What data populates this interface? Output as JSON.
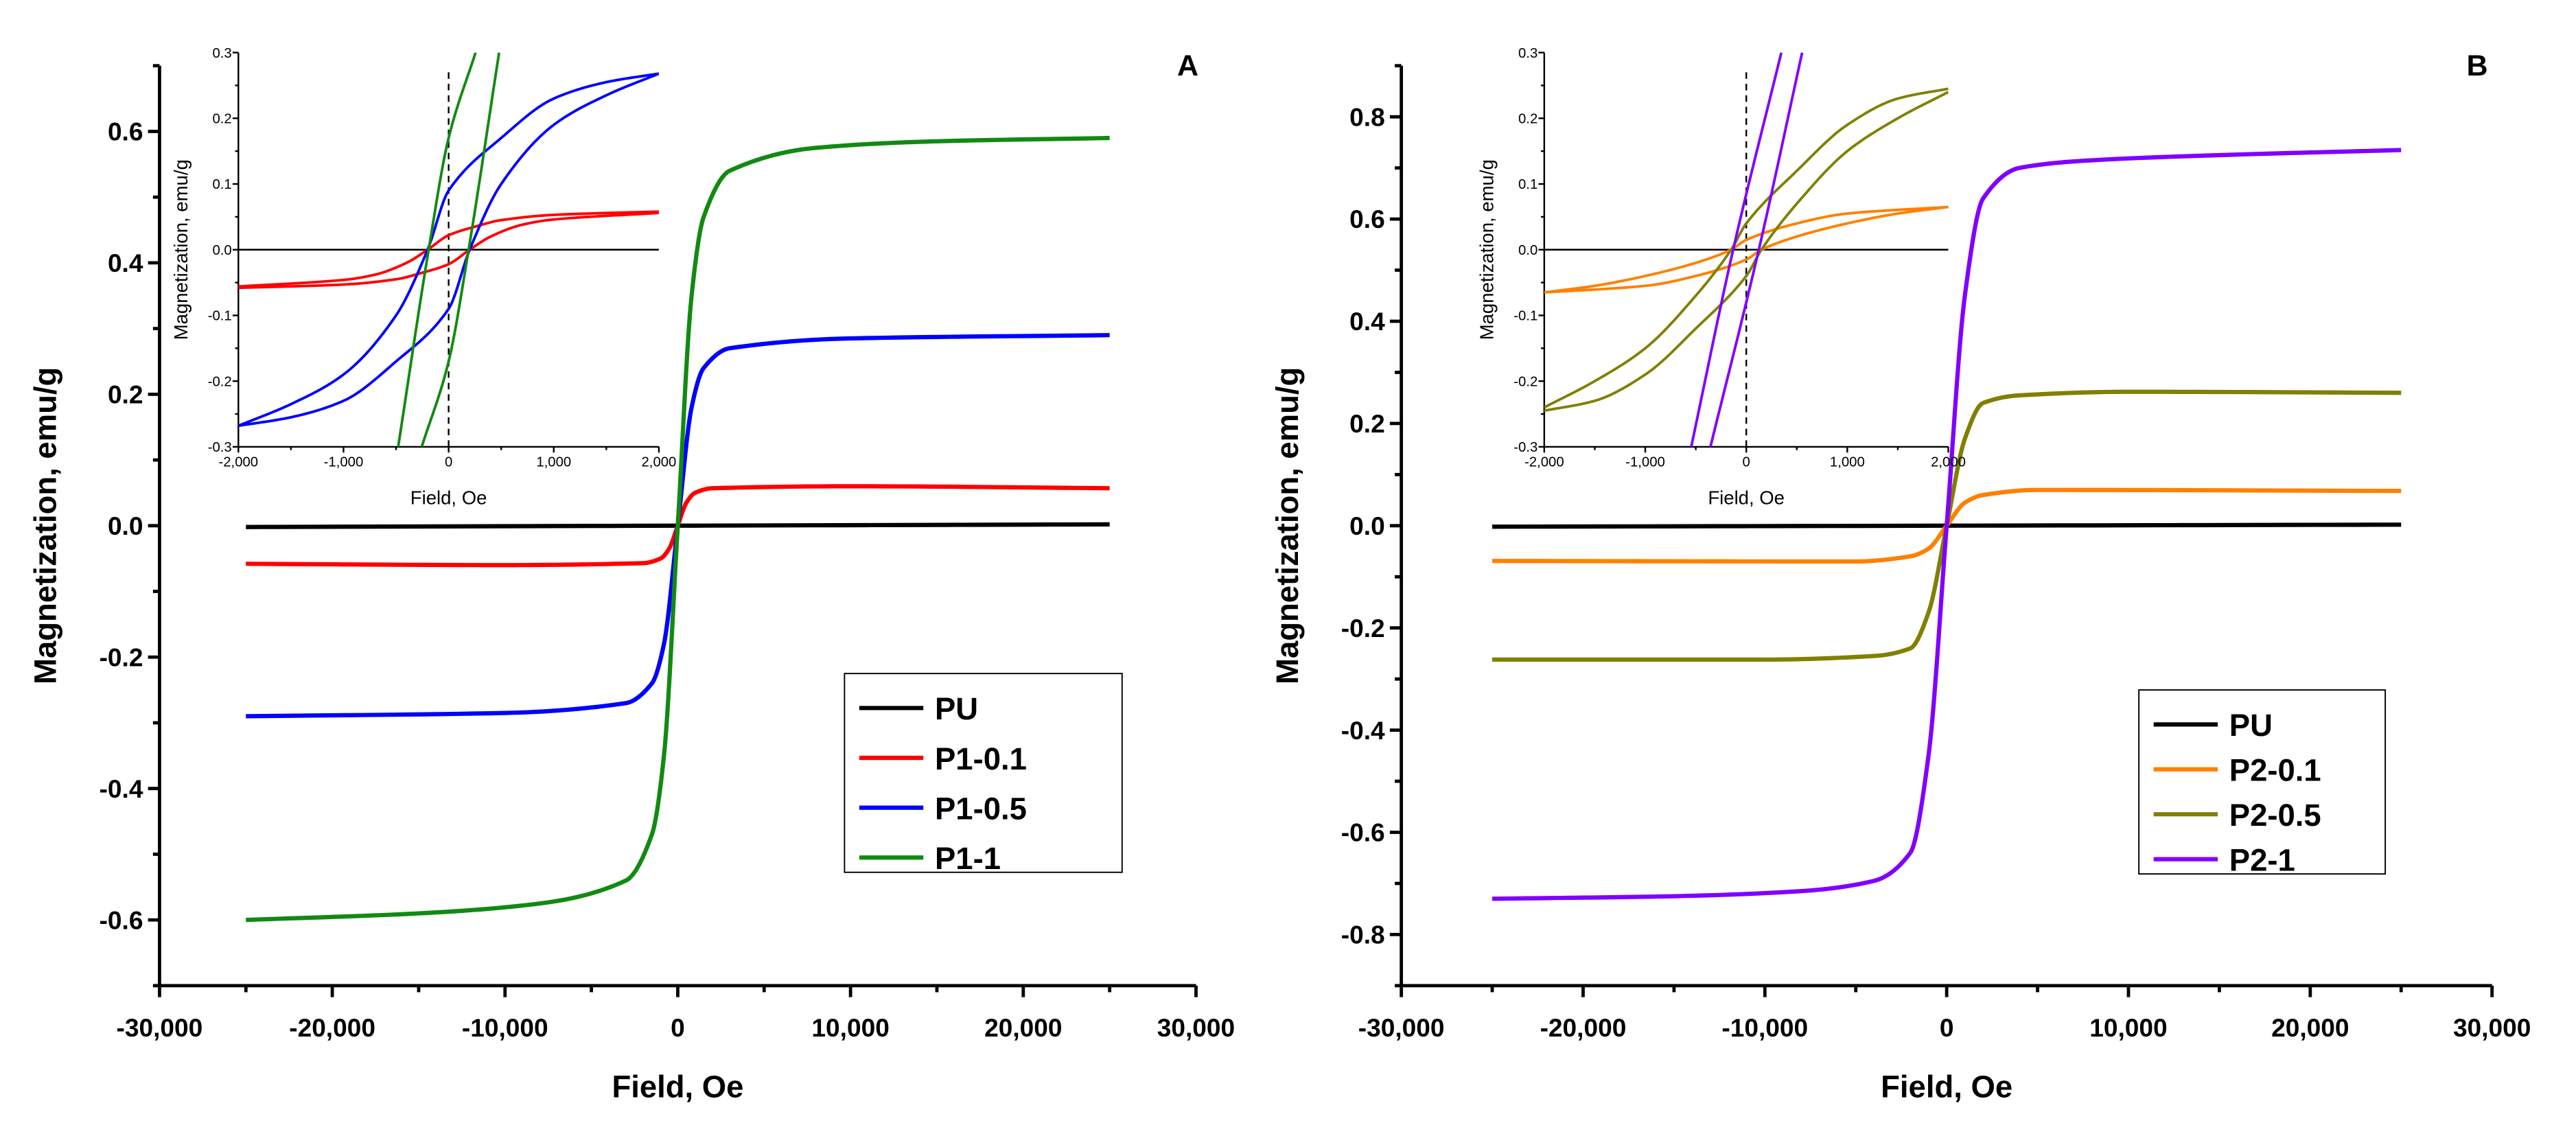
{
  "chart_data": [
    {
      "type": "line",
      "panel_label": "A",
      "title": "",
      "xlabel": "Field, Oe",
      "ylabel": "Magnetization, emu/g",
      "xlim": [
        -30000,
        30000
      ],
      "ylim": [
        -0.7,
        0.7
      ],
      "xticks": [
        -30000,
        -20000,
        -10000,
        0,
        10000,
        20000,
        30000
      ],
      "xtick_labels": [
        "-30,000",
        "-20,000",
        "-10,000",
        "0",
        "10,000",
        "20,000",
        "30,000"
      ],
      "yticks": [
        -0.6,
        -0.4,
        -0.2,
        0.0,
        0.2,
        0.4,
        0.6
      ],
      "ytick_labels": [
        "-0.6",
        "-0.4",
        "-0.2",
        "0.0",
        "0.2",
        "0.4",
        "0.6"
      ],
      "grid": false,
      "legend": {
        "position": "bottom-right",
        "entries": [
          "PU",
          "P1-0.1",
          "P1-0.5",
          "P1-1"
        ]
      },
      "series": [
        {
          "name": "PU",
          "color": "#000000",
          "x": [
            -25000,
            0,
            25000
          ],
          "y": [
            -0.002,
            0,
            0.002
          ]
        },
        {
          "name": "P1-0.1",
          "color": "#ff0000",
          "x": [
            -25000,
            -10000,
            -2000,
            -1000,
            -500,
            0,
            500,
            1000,
            2000,
            10000,
            25000
          ],
          "y": [
            -0.058,
            -0.06,
            -0.057,
            -0.05,
            -0.035,
            0,
            0.035,
            0.05,
            0.057,
            0.06,
            0.057
          ]
        },
        {
          "name": "P1-0.5",
          "color": "#0000ff",
          "x": [
            -25000,
            -10000,
            -3000,
            -1500,
            -800,
            0,
            800,
            1500,
            3000,
            10000,
            25000
          ],
          "y": [
            -0.29,
            -0.285,
            -0.27,
            -0.24,
            -0.18,
            0,
            0.18,
            0.24,
            0.27,
            0.285,
            0.29
          ]
        },
        {
          "name": "P1-1",
          "color": "#118a11",
          "x": [
            -25000,
            -15000,
            -8000,
            -3000,
            -1500,
            -800,
            0,
            800,
            1500,
            3000,
            8000,
            15000,
            25000
          ],
          "y": [
            -0.6,
            -0.59,
            -0.575,
            -0.54,
            -0.47,
            -0.35,
            0,
            0.35,
            0.47,
            0.54,
            0.575,
            0.585,
            0.59
          ]
        }
      ],
      "inset": {
        "xlabel": "Field, Oe",
        "ylabel": "Magnetization, emu/g",
        "xlim": [
          -2000,
          2000
        ],
        "ylim": [
          -0.3,
          0.3
        ],
        "xticks": [
          -2000,
          -1000,
          0,
          1000,
          2000
        ],
        "xtick_labels": [
          "-2,000",
          "-1,000",
          "0",
          "1,000",
          "2,000"
        ],
        "yticks": [
          -0.3,
          -0.2,
          -0.1,
          0.0,
          0.1,
          0.2,
          0.3
        ],
        "ytick_labels": [
          "-0.3",
          "-0.2",
          "-0.1",
          "0.0",
          "0.1",
          "0.2",
          "0.3"
        ],
        "series": [
          {
            "name": "PU",
            "color": "#000000",
            "branches": [
              {
                "x": [
                  -2000,
                  2000
                ],
                "y": [
                  0,
                  0
                ]
              }
            ]
          },
          {
            "name": "P1-0.1",
            "color": "#ff0000",
            "branches": [
              {
                "x": [
                  -2000,
                  -1000,
                  -700,
                  -400,
                  -200,
                  0,
                  250,
                  500,
                  1000,
                  2000
                ],
                "y": [
                  -0.056,
                  -0.046,
                  -0.038,
                  -0.02,
                  0,
                  0.022,
                  0.035,
                  0.045,
                  0.053,
                  0.058
                ]
              },
              {
                "x": [
                  -2000,
                  -1000,
                  -500,
                  -250,
                  0,
                  200,
                  400,
                  700,
                  1000,
                  2000
                ],
                "y": [
                  -0.058,
                  -0.053,
                  -0.045,
                  -0.035,
                  -0.022,
                  0,
                  0.02,
                  0.038,
                  0.046,
                  0.056
                ]
              }
            ]
          },
          {
            "name": "P1-0.5",
            "color": "#0000ff",
            "branches": [
              {
                "x": [
                  -2000,
                  -1500,
                  -1000,
                  -500,
                  -200,
                  0,
                  500,
                  1000,
                  1500,
                  2000
                ],
                "y": [
                  -0.268,
                  -0.235,
                  -0.19,
                  -0.1,
                  0,
                  0.09,
                  0.17,
                  0.23,
                  0.255,
                  0.268
                ]
              },
              {
                "x": [
                  -2000,
                  -1500,
                  -1000,
                  -500,
                  0,
                  200,
                  500,
                  1000,
                  1500,
                  2000
                ],
                "y": [
                  -0.268,
                  -0.255,
                  -0.23,
                  -0.17,
                  -0.09,
                  0,
                  0.1,
                  0.19,
                  0.235,
                  0.268
                ]
              }
            ]
          },
          {
            "name": "P1-1",
            "color": "#118a11",
            "branches": [
              {
                "x": [
                  -480,
                  -190,
                  0,
                  256
                ],
                "y": [
                  -0.3,
                  0,
                  0.17,
                  0.3
                ]
              },
              {
                "x": [
                  -256,
                  0,
                  190,
                  480
                ],
                "y": [
                  -0.3,
                  -0.17,
                  0,
                  0.3
                ]
              }
            ]
          }
        ]
      }
    },
    {
      "type": "line",
      "panel_label": "B",
      "title": "",
      "xlabel": "Field, Oe",
      "ylabel": "Magnetization, emu/g",
      "xlim": [
        -30000,
        30000
      ],
      "ylim": [
        -0.9,
        0.9
      ],
      "xticks": [
        -30000,
        -20000,
        -10000,
        0,
        10000,
        20000,
        30000
      ],
      "xtick_labels": [
        "-30,000",
        "-20,000",
        "-10,000",
        "0",
        "10,000",
        "20,000",
        "30,000"
      ],
      "yticks": [
        -0.8,
        -0.6,
        -0.4,
        -0.2,
        0.0,
        0.2,
        0.4,
        0.6,
        0.8
      ],
      "ytick_labels": [
        "-0.8",
        "-0.6",
        "-0.4",
        "-0.2",
        "0.0",
        "0.2",
        "0.4",
        "0.6",
        "0.8"
      ],
      "grid": false,
      "legend": {
        "position": "bottom-right",
        "entries": [
          "PU",
          "P2-0.1",
          "P2-0.5",
          "P2-1"
        ]
      },
      "series": [
        {
          "name": "PU",
          "color": "#000000",
          "x": [
            -25000,
            0,
            25000
          ],
          "y": [
            -0.002,
            0,
            0.002
          ]
        },
        {
          "name": "P2-0.1",
          "color": "#ff8000",
          "x": [
            -25000,
            -5000,
            -2000,
            -1000,
            0,
            1000,
            2000,
            5000,
            25000
          ],
          "y": [
            -0.069,
            -0.07,
            -0.06,
            -0.045,
            0,
            0.045,
            0.06,
            0.07,
            0.068
          ]
        },
        {
          "name": "P2-0.5",
          "color": "#808000",
          "x": [
            -25000,
            -10000,
            -4000,
            -2000,
            -1000,
            0,
            1000,
            2000,
            4000,
            10000,
            25000
          ],
          "y": [
            -0.262,
            -0.262,
            -0.255,
            -0.24,
            -0.17,
            0,
            0.17,
            0.24,
            0.255,
            0.262,
            0.26
          ]
        },
        {
          "name": "P2-1",
          "color": "#8000ff",
          "x": [
            -25000,
            -15000,
            -8000,
            -4000,
            -2000,
            -1000,
            0,
            1000,
            2000,
            4000,
            8000,
            15000,
            25000
          ],
          "y": [
            -0.73,
            -0.725,
            -0.715,
            -0.695,
            -0.64,
            -0.45,
            0,
            0.45,
            0.64,
            0.7,
            0.715,
            0.725,
            0.735
          ]
        }
      ],
      "inset": {
        "xlabel": "Field, Oe",
        "ylabel": "Magnetization, emu/g",
        "xlim": [
          -2000,
          2000
        ],
        "ylim": [
          -0.3,
          0.3
        ],
        "xticks": [
          -2000,
          -1000,
          0,
          1000,
          2000
        ],
        "xtick_labels": [
          "-2,000",
          "-1,000",
          "0",
          "1,000",
          "2,000"
        ],
        "yticks": [
          -0.3,
          -0.2,
          -0.1,
          0.0,
          0.1,
          0.2,
          0.3
        ],
        "ytick_labels": [
          "-0.3",
          "-0.2",
          "-0.1",
          "0.0",
          "0.1",
          "0.2",
          "0.3"
        ],
        "series": [
          {
            "name": "PU",
            "color": "#000000",
            "branches": [
              {
                "x": [
                  -2000,
                  2000
                ],
                "y": [
                  0,
                  0
                ]
              }
            ]
          },
          {
            "name": "P2-0.1",
            "color": "#ff8000",
            "branches": [
              {
                "x": [
                  -2000,
                  -1500,
                  -1000,
                  -500,
                  -150,
                  0,
                  500,
                  1000,
                  2000
                ],
                "y": [
                  -0.065,
                  -0.055,
                  -0.04,
                  -0.02,
                  0,
                  0.015,
                  0.04,
                  0.055,
                  0.065
                ]
              },
              {
                "x": [
                  -2000,
                  -1000,
                  -500,
                  0,
                  150,
                  500,
                  1000,
                  1500,
                  2000
                ],
                "y": [
                  -0.065,
                  -0.055,
                  -0.04,
                  -0.015,
                  0,
                  0.02,
                  0.04,
                  0.055,
                  0.065
                ]
              }
            ]
          },
          {
            "name": "P2-0.5",
            "color": "#808000",
            "branches": [
              {
                "x": [
                  -2000,
                  -1500,
                  -1000,
                  -500,
                  -150,
                  0,
                  500,
                  1000,
                  1500,
                  2000
                ],
                "y": [
                  -0.24,
                  -0.2,
                  -0.15,
                  -0.07,
                  0,
                  0.04,
                  0.12,
                  0.19,
                  0.23,
                  0.245
                ]
              },
              {
                "x": [
                  -2000,
                  -1500,
                  -1000,
                  -500,
                  0,
                  150,
                  500,
                  1000,
                  1500,
                  2000
                ],
                "y": [
                  -0.245,
                  -0.23,
                  -0.19,
                  -0.12,
                  -0.04,
                  0,
                  0.07,
                  0.15,
                  0.2,
                  0.24
                ]
              }
            ]
          },
          {
            "name": "P2-1",
            "color": "#8000ff",
            "branches": [
              {
                "x": [
                  -545,
                  -130,
                  347
                ],
                "y": [
                  -0.3,
                  0,
                  0.3
                ]
              },
              {
                "x": [
                  -355,
                  124,
                  553
                ],
                "y": [
                  -0.3,
                  0,
                  0.3
                ]
              }
            ]
          }
        ]
      }
    }
  ]
}
